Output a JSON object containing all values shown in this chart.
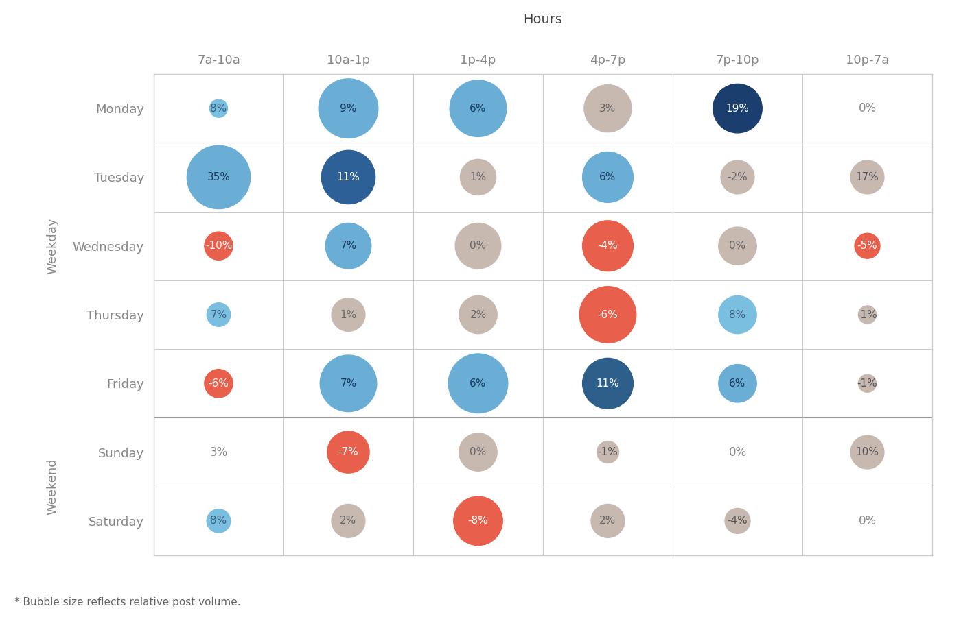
{
  "hours": [
    "7a-10a",
    "10a-1p",
    "1p-4p",
    "4p-7p",
    "7p-10p",
    "10p-7a"
  ],
  "days": [
    "Monday",
    "Tuesday",
    "Wednesday",
    "Thursday",
    "Friday",
    "Sunday",
    "Saturday"
  ],
  "values": [
    [
      8,
      9,
      6,
      3,
      19,
      0
    ],
    [
      35,
      11,
      1,
      6,
      -2,
      17
    ],
    [
      -10,
      7,
      0,
      -4,
      0,
      -5
    ],
    [
      7,
      1,
      2,
      -6,
      8,
      -1
    ],
    [
      -6,
      7,
      6,
      11,
      6,
      -1
    ],
    [
      3,
      -7,
      0,
      -1,
      0,
      10
    ],
    [
      8,
      2,
      -8,
      2,
      -4,
      0
    ]
  ],
  "bubble_sizes": [
    [
      200,
      2200,
      2000,
      1400,
      1500,
      0
    ],
    [
      2500,
      1800,
      800,
      1600,
      700,
      700
    ],
    [
      500,
      1300,
      1300,
      1600,
      900,
      400
    ],
    [
      350,
      700,
      900,
      2000,
      900,
      200
    ],
    [
      500,
      2000,
      2200,
      1600,
      900,
      200
    ],
    [
      200,
      1100,
      900,
      300,
      200,
      700
    ],
    [
      350,
      700,
      1500,
      700,
      400,
      200
    ]
  ],
  "colors": [
    [
      "#7bbfe0",
      "#6aaed6",
      "#6aaed6",
      "#c7b9b0",
      "#1a3f6f",
      "none"
    ],
    [
      "#6aaed6",
      "#2d6096",
      "#c7b9b0",
      "#6aaed6",
      "#c7b9b0",
      "#c7b9b0"
    ],
    [
      "#e8604c",
      "#6aaed6",
      "#c7b9b0",
      "#e8604c",
      "#c7b9b0",
      "#e8604c"
    ],
    [
      "#7bbfe0",
      "#c7b9b0",
      "#c7b9b0",
      "#e8604c",
      "#7bbfe0",
      "#c7b9b0"
    ],
    [
      "#e8604c",
      "#6aaed6",
      "#6aaed6",
      "#2d5f8a",
      "#6aaed6",
      "#c7b9b0"
    ],
    [
      "none",
      "#e8604c",
      "#c7b9b0",
      "#c7b9b0",
      "none",
      "#c7b9b0"
    ],
    [
      "#7bbfe0",
      "#c7b9b0",
      "#e8604c",
      "#c7b9b0",
      "#c7b9b0",
      "none"
    ]
  ],
  "text_colors": [
    [
      "#3a6080",
      "#1a3a5c",
      "#1a3a5c",
      "#666666",
      "#ffffff",
      "#555555"
    ],
    [
      "#1a3a5c",
      "#ffffff",
      "#666666",
      "#1a3a5c",
      "#666666",
      "#555555"
    ],
    [
      "#ffffff",
      "#1a3a5c",
      "#666666",
      "#ffffff",
      "#666666",
      "#ffffff"
    ],
    [
      "#3a6080",
      "#666666",
      "#666666",
      "#ffffff",
      "#3a6080",
      "#555555"
    ],
    [
      "#ffffff",
      "#1a3a5c",
      "#1a3a5c",
      "#ffffff",
      "#1a3a5c",
      "#555555"
    ],
    [
      "#555555",
      "#ffffff",
      "#666666",
      "#555555",
      "#555555",
      "#555555"
    ],
    [
      "#3a6080",
      "#666666",
      "#ffffff",
      "#666666",
      "#555555",
      "#555555"
    ]
  ],
  "weekday_label": "Weekday",
  "weekend_label": "Weekend",
  "hours_label": "Hours",
  "footnote": "* Bubble size reflects relative post volume.",
  "bg_color": "#ffffff",
  "grid_line_color": "#cccccc",
  "separator_line_color": "#999999",
  "label_color": "#888888"
}
